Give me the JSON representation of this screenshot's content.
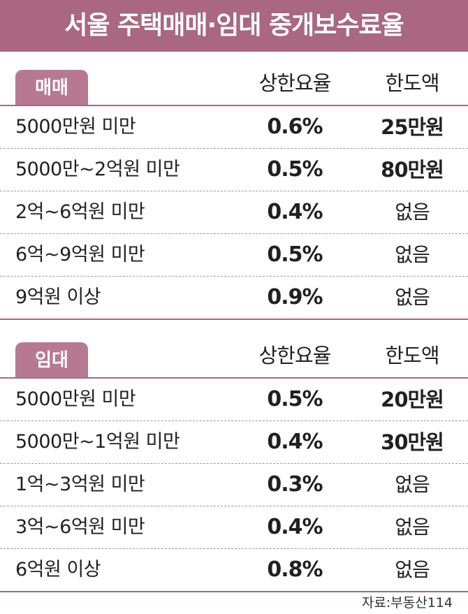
{
  "title": "서울 주택매매·임대 중개보수료율",
  "colors": {
    "title_bg": "#a9687f",
    "tag_bg": "#b77991"
  },
  "chart_data": {
    "type": "table",
    "title": "서울 주택매매·임대 중개보수료율",
    "tables": [
      {
        "name": "매매",
        "columns": [
          "상한요율",
          "한도액"
        ],
        "rows": [
          {
            "label": "5000만원 미만",
            "rate": "0.6%",
            "cap": "25만원",
            "cap_emph": true
          },
          {
            "label": "5000만~2억원 미만",
            "rate": "0.5%",
            "cap": "80만원",
            "cap_emph": true
          },
          {
            "label": "2억~6억원 미만",
            "rate": "0.4%",
            "cap": "없음",
            "cap_emph": false
          },
          {
            "label": "6억~9억원 미만",
            "rate": "0.5%",
            "cap": "없음",
            "cap_emph": false
          },
          {
            "label": "9억원 이상",
            "rate": "0.9%",
            "cap": "없음",
            "cap_emph": false
          }
        ]
      },
      {
        "name": "임대",
        "columns": [
          "상한요율",
          "한도액"
        ],
        "rows": [
          {
            "label": "5000만원 미만",
            "rate": "0.5%",
            "cap": "20만원",
            "cap_emph": true
          },
          {
            "label": "5000만~1억원 미만",
            "rate": "0.4%",
            "cap": "30만원",
            "cap_emph": true
          },
          {
            "label": "1억~3억원 미만",
            "rate": "0.3%",
            "cap": "없음",
            "cap_emph": false
          },
          {
            "label": "3억~6억원 미만",
            "rate": "0.4%",
            "cap": "없음",
            "cap_emph": false
          },
          {
            "label": "6억원 이상",
            "rate": "0.8%",
            "cap": "없음",
            "cap_emph": false
          }
        ]
      }
    ]
  },
  "source": "자료:부동산114"
}
